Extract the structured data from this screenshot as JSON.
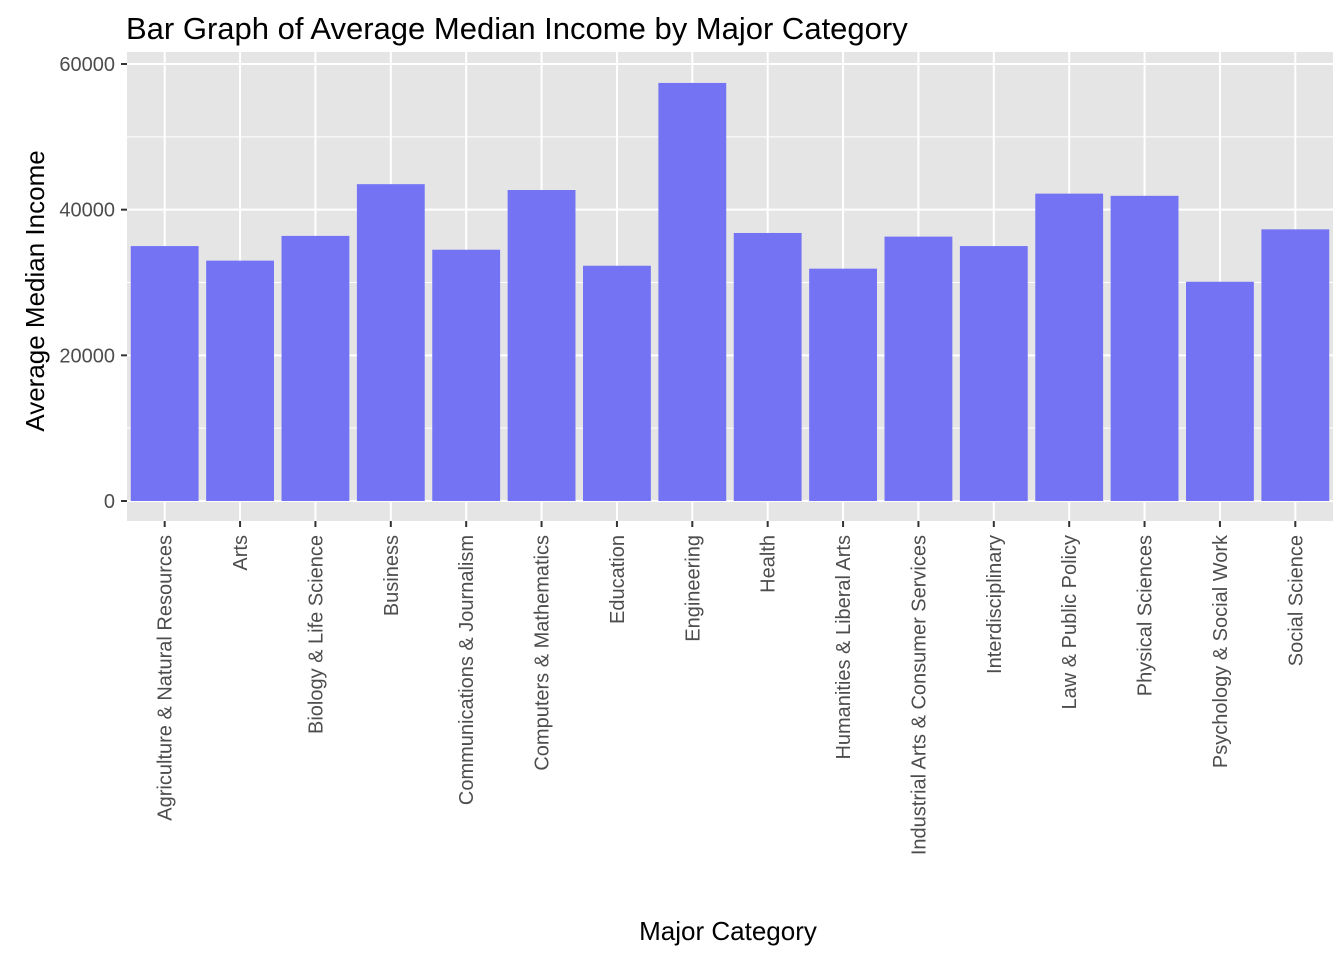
{
  "chart_data": {
    "type": "bar",
    "title": "Bar Graph of Average Median Income by Major Category",
    "xlabel": "Major Category",
    "ylabel": "Average Median Income",
    "categories": [
      "Agriculture & Natural Resources",
      "Arts",
      "Biology & Life Science",
      "Business",
      "Communications & Journalism",
      "Computers & Mathematics",
      "Education",
      "Engineering",
      "Health",
      "Humanities & Liberal Arts",
      "Industrial Arts & Consumer Services",
      "Interdisciplinary",
      "Law & Public Policy",
      "Physical Sciences",
      "Psychology & Social Work",
      "Social Science"
    ],
    "values": [
      35000,
      33000,
      36400,
      43500,
      34500,
      42700,
      32300,
      57400,
      36800,
      31900,
      36300,
      35000,
      42200,
      41900,
      30100,
      37300
    ],
    "ylim": [
      -2800,
      60000
    ],
    "y_ticks": [
      "0",
      "20000",
      "40000",
      "60000"
    ],
    "y_tick_values": [
      0,
      20000,
      40000,
      60000
    ],
    "grid": true,
    "colors": {
      "bar": "#7373F4",
      "panel_background": "#E5E5E5",
      "grid": "#FFFFFF"
    }
  }
}
